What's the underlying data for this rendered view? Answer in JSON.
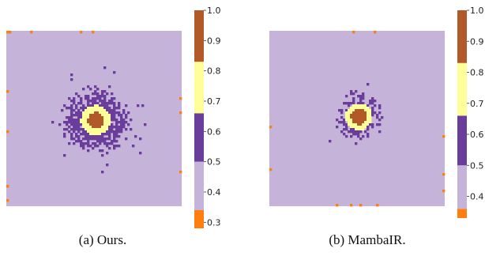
{
  "chart_data": [
    {
      "type": "heatmap",
      "caption": "(a) Ours.",
      "colorbar": {
        "ticks": [
          "1.0",
          "0.9",
          "0.8",
          "0.7",
          "0.6",
          "0.5",
          "0.4",
          "0.3"
        ],
        "range": [
          0.28,
          1.0
        ],
        "levels": [
          {
            "from": 0.28,
            "to": 0.34,
            "color": "#ff7f0e"
          },
          {
            "from": 0.34,
            "to": 0.5,
            "color": "#c6b3d9"
          },
          {
            "from": 0.5,
            "to": 0.66,
            "color": "#6a3d9a"
          },
          {
            "from": 0.66,
            "to": 0.83,
            "color": "#ffff99"
          },
          {
            "from": 0.83,
            "to": 1.0,
            "color": "#b15928"
          }
        ]
      },
      "background_value": 0.42,
      "blob": {
        "center": [
          0.51,
          0.51
        ],
        "core_radius": 0.045,
        "ring_radius": 0.085,
        "halo_radius": 0.21,
        "halo_scatter": 0.8
      }
    },
    {
      "type": "heatmap",
      "caption": "(b) MambaIR.",
      "colorbar": {
        "ticks": [
          "1.0",
          "0.9",
          "0.8",
          "0.7",
          "0.6",
          "0.5",
          "0.4"
        ],
        "range": [
          0.33,
          1.0
        ],
        "levels": [
          {
            "from": 0.33,
            "to": 0.36,
            "color": "#ff7f0e"
          },
          {
            "from": 0.36,
            "to": 0.5,
            "color": "#c6b3d9"
          },
          {
            "from": 0.5,
            "to": 0.66,
            "color": "#6a3d9a"
          },
          {
            "from": 0.66,
            "to": 0.83,
            "color": "#ffff99"
          },
          {
            "from": 0.83,
            "to": 1.0,
            "color": "#b15928"
          }
        ]
      },
      "background_value": 0.42,
      "blob": {
        "center": [
          0.51,
          0.49
        ],
        "core_radius": 0.045,
        "ring_radius": 0.075,
        "halo_radius": 0.16,
        "halo_scatter": 0.45
      }
    }
  ]
}
